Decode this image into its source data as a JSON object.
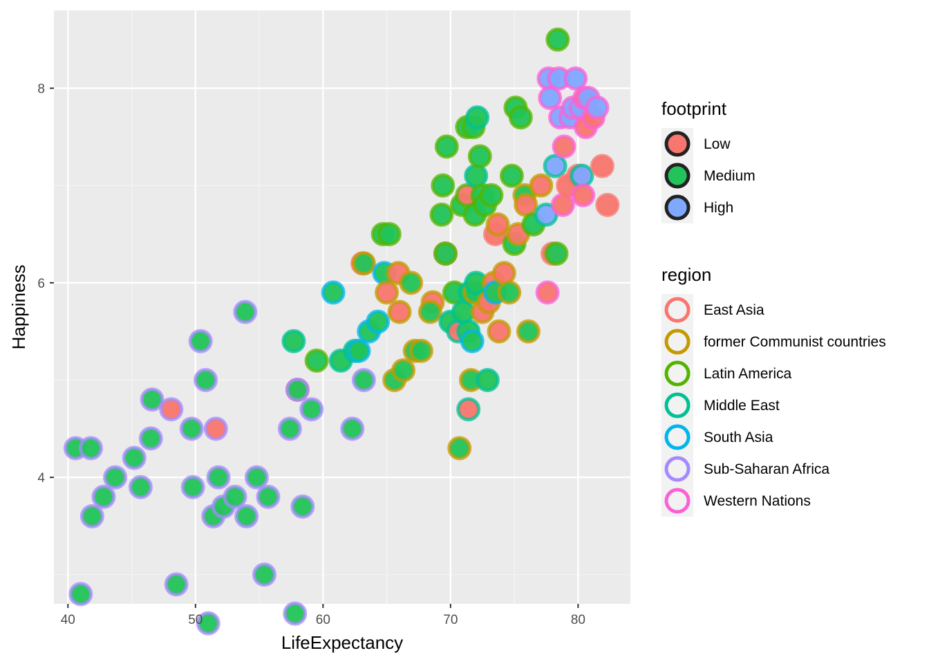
{
  "chart_data": {
    "type": "scatter",
    "xlabel": "LifeExpectancy",
    "ylabel": "Happiness",
    "xlim": [
      38.9,
      84.1
    ],
    "ylim": [
      2.7,
      8.8
    ],
    "x_ticks": [
      40,
      50,
      60,
      70,
      80
    ],
    "y_ticks": [
      4,
      6,
      8
    ],
    "grid": true,
    "legend_position": "right",
    "legends": [
      {
        "title": "footprint",
        "entries": [
          {
            "label": "Low",
            "fill": "#F8766D"
          },
          {
            "label": "Medium",
            "fill": "#22C45A"
          },
          {
            "label": "High",
            "fill": "#7FA8FF"
          }
        ]
      },
      {
        "title": "region",
        "entries": [
          {
            "label": "East Asia",
            "color": "#F8766D"
          },
          {
            "label": "former Communist countries",
            "color": "#C49A00"
          },
          {
            "label": "Latin America",
            "color": "#53B400"
          },
          {
            "label": "Middle East",
            "color": "#00C094"
          },
          {
            "label": "South Asia",
            "color": "#00B6EB"
          },
          {
            "label": "Sub-Saharan Africa",
            "color": "#A58AFF"
          },
          {
            "label": "Western Nations",
            "color": "#FB61D7"
          }
        ]
      }
    ],
    "points": [
      {
        "x": 40.6,
        "y": 4.3,
        "footprint": "Medium",
        "region": "Sub-Saharan Africa"
      },
      {
        "x": 41.8,
        "y": 4.3,
        "footprint": "Medium",
        "region": "Sub-Saharan Africa"
      },
      {
        "x": 41.9,
        "y": 3.6,
        "footprint": "Medium",
        "region": "Sub-Saharan Africa"
      },
      {
        "x": 41.0,
        "y": 2.8,
        "footprint": "Medium",
        "region": "Sub-Saharan Africa"
      },
      {
        "x": 42.8,
        "y": 3.8,
        "footprint": "Medium",
        "region": "Sub-Saharan Africa"
      },
      {
        "x": 43.7,
        "y": 4.0,
        "footprint": "Medium",
        "region": "Sub-Saharan Africa"
      },
      {
        "x": 45.2,
        "y": 4.2,
        "footprint": "Medium",
        "region": "Sub-Saharan Africa"
      },
      {
        "x": 45.7,
        "y": 3.9,
        "footprint": "Medium",
        "region": "Sub-Saharan Africa"
      },
      {
        "x": 46.5,
        "y": 4.4,
        "footprint": "Medium",
        "region": "Sub-Saharan Africa"
      },
      {
        "x": 46.6,
        "y": 4.8,
        "footprint": "Medium",
        "region": "Sub-Saharan Africa"
      },
      {
        "x": 48.1,
        "y": 4.7,
        "footprint": "Low",
        "region": "Sub-Saharan Africa"
      },
      {
        "x": 48.5,
        "y": 2.9,
        "footprint": "Medium",
        "region": "Sub-Saharan Africa"
      },
      {
        "x": 49.7,
        "y": 4.5,
        "footprint": "Medium",
        "region": "Sub-Saharan Africa"
      },
      {
        "x": 49.8,
        "y": 3.9,
        "footprint": "Medium",
        "region": "Sub-Saharan Africa"
      },
      {
        "x": 50.4,
        "y": 5.4,
        "footprint": "Medium",
        "region": "Sub-Saharan Africa"
      },
      {
        "x": 50.8,
        "y": 5.0,
        "footprint": "Medium",
        "region": "Sub-Saharan Africa"
      },
      {
        "x": 51.0,
        "y": 2.5,
        "footprint": "Medium",
        "region": "Sub-Saharan Africa"
      },
      {
        "x": 51.4,
        "y": 3.6,
        "footprint": "Medium",
        "region": "Sub-Saharan Africa"
      },
      {
        "x": 51.6,
        "y": 4.5,
        "footprint": "Low",
        "region": "Sub-Saharan Africa"
      },
      {
        "x": 51.8,
        "y": 4.0,
        "footprint": "Medium",
        "region": "Sub-Saharan Africa"
      },
      {
        "x": 52.2,
        "y": 3.7,
        "footprint": "Medium",
        "region": "Sub-Saharan Africa"
      },
      {
        "x": 53.1,
        "y": 3.8,
        "footprint": "Medium",
        "region": "Sub-Saharan Africa"
      },
      {
        "x": 53.9,
        "y": 5.7,
        "footprint": "Medium",
        "region": "Sub-Saharan Africa"
      },
      {
        "x": 54.0,
        "y": 3.6,
        "footprint": "Medium",
        "region": "Sub-Saharan Africa"
      },
      {
        "x": 54.8,
        "y": 4.0,
        "footprint": "Medium",
        "region": "Sub-Saharan Africa"
      },
      {
        "x": 55.4,
        "y": 3.0,
        "footprint": "Medium",
        "region": "Sub-Saharan Africa"
      },
      {
        "x": 55.7,
        "y": 3.8,
        "footprint": "Medium",
        "region": "Sub-Saharan Africa"
      },
      {
        "x": 57.4,
        "y": 4.5,
        "footprint": "Medium",
        "region": "Sub-Saharan Africa"
      },
      {
        "x": 57.8,
        "y": 2.6,
        "footprint": "Medium",
        "region": "Sub-Saharan Africa"
      },
      {
        "x": 58.0,
        "y": 4.9,
        "footprint": "Low",
        "region": "East Asia"
      },
      {
        "x": 58.0,
        "y": 4.9,
        "footprint": "Medium",
        "region": "Sub-Saharan Africa"
      },
      {
        "x": 58.4,
        "y": 3.7,
        "footprint": "Medium",
        "region": "Sub-Saharan Africa"
      },
      {
        "x": 57.7,
        "y": 5.4,
        "footprint": "Medium",
        "region": "Middle East"
      },
      {
        "x": 59.1,
        "y": 4.7,
        "footprint": "Medium",
        "region": "Sub-Saharan Africa"
      },
      {
        "x": 59.5,
        "y": 5.2,
        "footprint": "Medium",
        "region": "Latin America"
      },
      {
        "x": 60.8,
        "y": 5.9,
        "footprint": "Medium",
        "region": "South Asia"
      },
      {
        "x": 61.4,
        "y": 5.2,
        "footprint": "Medium",
        "region": "Middle East"
      },
      {
        "x": 62.3,
        "y": 4.5,
        "footprint": "Medium",
        "region": "Sub-Saharan Africa"
      },
      {
        "x": 62.5,
        "y": 5.3,
        "footprint": "Medium",
        "region": "Middle East"
      },
      {
        "x": 62.8,
        "y": 5.3,
        "footprint": "Medium",
        "region": "South Asia"
      },
      {
        "x": 63.1,
        "y": 6.2,
        "footprint": "Low",
        "region": "East Asia"
      },
      {
        "x": 63.2,
        "y": 6.2,
        "footprint": "Medium",
        "region": "former Communist countries"
      },
      {
        "x": 63.2,
        "y": 5.0,
        "footprint": "Medium",
        "region": "Sub-Saharan Africa"
      },
      {
        "x": 63.6,
        "y": 5.5,
        "footprint": "Medium",
        "region": "South Asia"
      },
      {
        "x": 64.3,
        "y": 5.6,
        "footprint": "Medium",
        "region": "South Asia"
      },
      {
        "x": 64.8,
        "y": 6.1,
        "footprint": "Medium",
        "region": "South Asia"
      },
      {
        "x": 64.7,
        "y": 6.5,
        "footprint": "Medium",
        "region": "Latin America"
      },
      {
        "x": 65.2,
        "y": 6.5,
        "footprint": "Medium",
        "region": "Latin America"
      },
      {
        "x": 65.0,
        "y": 5.9,
        "footprint": "Low",
        "region": "former Communist countries"
      },
      {
        "x": 65.6,
        "y": 5.0,
        "footprint": "Medium",
        "region": "former Communist countries"
      },
      {
        "x": 65.9,
        "y": 6.1,
        "footprint": "Low",
        "region": "former Communist countries"
      },
      {
        "x": 66.0,
        "y": 5.7,
        "footprint": "Low",
        "region": "former Communist countries"
      },
      {
        "x": 66.3,
        "y": 5.1,
        "footprint": "Medium",
        "region": "former Communist countries"
      },
      {
        "x": 66.9,
        "y": 6.0,
        "footprint": "Medium",
        "region": "former Communist countries"
      },
      {
        "x": 67.2,
        "y": 5.3,
        "footprint": "Medium",
        "region": "former Communist countries"
      },
      {
        "x": 67.7,
        "y": 5.3,
        "footprint": "Medium",
        "region": "former Communist countries"
      },
      {
        "x": 68.6,
        "y": 5.8,
        "footprint": "Low",
        "region": "former Communist countries"
      },
      {
        "x": 68.4,
        "y": 5.7,
        "footprint": "Medium",
        "region": "former Communist countries"
      },
      {
        "x": 69.3,
        "y": 6.7,
        "footprint": "Medium",
        "region": "Latin America"
      },
      {
        "x": 69.4,
        "y": 7.0,
        "footprint": "Medium",
        "region": "Latin America"
      },
      {
        "x": 69.6,
        "y": 6.3,
        "footprint": "Low",
        "region": "East Asia"
      },
      {
        "x": 69.6,
        "y": 6.3,
        "footprint": "Medium",
        "region": "Latin America"
      },
      {
        "x": 69.7,
        "y": 7.4,
        "footprint": "Medium",
        "region": "Latin America"
      },
      {
        "x": 70.0,
        "y": 5.6,
        "footprint": "Medium",
        "region": "Middle East"
      },
      {
        "x": 70.3,
        "y": 5.9,
        "footprint": "Medium",
        "region": "Latin America"
      },
      {
        "x": 70.6,
        "y": 5.5,
        "footprint": "Low",
        "region": "Middle East"
      },
      {
        "x": 70.7,
        "y": 4.3,
        "footprint": "Medium",
        "region": "former Communist countries"
      },
      {
        "x": 70.9,
        "y": 6.8,
        "footprint": "Medium",
        "region": "Latin America"
      },
      {
        "x": 71.0,
        "y": 5.7,
        "footprint": "Medium",
        "region": "Middle East"
      },
      {
        "x": 71.3,
        "y": 7.6,
        "footprint": "Medium",
        "region": "Latin America"
      },
      {
        "x": 71.3,
        "y": 6.9,
        "footprint": "Low",
        "region": "Latin America"
      },
      {
        "x": 71.4,
        "y": 5.5,
        "footprint": "Medium",
        "region": "Middle East"
      },
      {
        "x": 71.4,
        "y": 4.7,
        "footprint": "Low",
        "region": "Middle East"
      },
      {
        "x": 71.5,
        "y": 5.9,
        "footprint": "Medium",
        "region": "Middle East"
      },
      {
        "x": 71.6,
        "y": 5.0,
        "footprint": "Medium",
        "region": "former Communist countries"
      },
      {
        "x": 71.7,
        "y": 5.4,
        "footprint": "Medium",
        "region": "South Asia"
      },
      {
        "x": 71.8,
        "y": 7.6,
        "footprint": "Medium",
        "region": "Latin America"
      },
      {
        "x": 71.9,
        "y": 6.7,
        "footprint": "Medium",
        "region": "Latin America"
      },
      {
        "x": 71.9,
        "y": 5.9,
        "footprint": "Medium",
        "region": "former Communist countries"
      },
      {
        "x": 72.0,
        "y": 6.0,
        "footprint": "Medium",
        "region": "Middle East"
      },
      {
        "x": 72.0,
        "y": 7.1,
        "footprint": "Medium",
        "region": "Middle East"
      },
      {
        "x": 72.1,
        "y": 7.7,
        "footprint": "Medium",
        "region": "Middle East"
      },
      {
        "x": 72.3,
        "y": 7.3,
        "footprint": "Medium",
        "region": "Latin America"
      },
      {
        "x": 72.5,
        "y": 6.9,
        "footprint": "Medium",
        "region": "Latin America"
      },
      {
        "x": 72.5,
        "y": 5.7,
        "footprint": "Low",
        "region": "former Communist countries"
      },
      {
        "x": 72.7,
        "y": 6.8,
        "footprint": "Medium",
        "region": "Latin America"
      },
      {
        "x": 72.9,
        "y": 5.0,
        "footprint": "Medium",
        "region": "Middle East"
      },
      {
        "x": 73.0,
        "y": 5.8,
        "footprint": "Low",
        "region": "former Communist countries"
      },
      {
        "x": 73.2,
        "y": 6.9,
        "footprint": "Medium",
        "region": "Latin America"
      },
      {
        "x": 73.4,
        "y": 6.0,
        "footprint": "Low",
        "region": "former Communist countries"
      },
      {
        "x": 73.5,
        "y": 5.9,
        "footprint": "Medium",
        "region": "South Asia"
      },
      {
        "x": 73.5,
        "y": 6.5,
        "footprint": "Low",
        "region": "East Asia"
      },
      {
        "x": 73.7,
        "y": 6.6,
        "footprint": "Low",
        "region": "former Communist countries"
      },
      {
        "x": 73.8,
        "y": 5.5,
        "footprint": "Low",
        "region": "former Communist countries"
      },
      {
        "x": 74.2,
        "y": 6.1,
        "footprint": "Low",
        "region": "former Communist countries"
      },
      {
        "x": 74.6,
        "y": 5.9,
        "footprint": "Medium",
        "region": "former Communist countries"
      },
      {
        "x": 74.8,
        "y": 7.1,
        "footprint": "Medium",
        "region": "Latin America"
      },
      {
        "x": 75.0,
        "y": 6.4,
        "footprint": "Medium",
        "region": "Latin America"
      },
      {
        "x": 75.1,
        "y": 7.8,
        "footprint": "Medium",
        "region": "Latin America"
      },
      {
        "x": 75.3,
        "y": 6.5,
        "footprint": "Low",
        "region": "former Communist countries"
      },
      {
        "x": 75.5,
        "y": 7.7,
        "footprint": "Medium",
        "region": "Latin America"
      },
      {
        "x": 75.8,
        "y": 6.9,
        "footprint": "Medium",
        "region": "former Communist countries"
      },
      {
        "x": 75.9,
        "y": 6.8,
        "footprint": "Low",
        "region": "former Communist countries"
      },
      {
        "x": 76.1,
        "y": 5.5,
        "footprint": "Medium",
        "region": "former Communist countries"
      },
      {
        "x": 76.5,
        "y": 6.6,
        "footprint": "Medium",
        "region": "Latin America"
      },
      {
        "x": 77.1,
        "y": 7.0,
        "footprint": "Low",
        "region": "former Communist countries"
      },
      {
        "x": 77.5,
        "y": 6.7,
        "footprint": "High",
        "region": "Middle East"
      },
      {
        "x": 77.6,
        "y": 5.9,
        "footprint": "Low",
        "region": "Western Nations"
      },
      {
        "x": 77.7,
        "y": 8.1,
        "footprint": "High",
        "region": "Western Nations"
      },
      {
        "x": 77.8,
        "y": 7.9,
        "footprint": "High",
        "region": "Western Nations"
      },
      {
        "x": 78.0,
        "y": 6.3,
        "footprint": "Low",
        "region": "East Asia"
      },
      {
        "x": 78.2,
        "y": 7.2,
        "footprint": "High",
        "region": "Middle East"
      },
      {
        "x": 78.3,
        "y": 6.3,
        "footprint": "Medium",
        "region": "Latin America"
      },
      {
        "x": 78.4,
        "y": 8.5,
        "footprint": "Medium",
        "region": "Latin America"
      },
      {
        "x": 78.5,
        "y": 8.1,
        "footprint": "High",
        "region": "Western Nations"
      },
      {
        "x": 78.6,
        "y": 7.7,
        "footprint": "High",
        "region": "Western Nations"
      },
      {
        "x": 78.8,
        "y": 6.8,
        "footprint": "Low",
        "region": "Western Nations"
      },
      {
        "x": 78.9,
        "y": 7.4,
        "footprint": "Low",
        "region": "Western Nations"
      },
      {
        "x": 79.2,
        "y": 7.0,
        "footprint": "Low",
        "region": "East Asia"
      },
      {
        "x": 79.4,
        "y": 7.7,
        "footprint": "High",
        "region": "Western Nations"
      },
      {
        "x": 79.6,
        "y": 7.8,
        "footprint": "High",
        "region": "Western Nations"
      },
      {
        "x": 79.8,
        "y": 8.1,
        "footprint": "High",
        "region": "Western Nations"
      },
      {
        "x": 80.0,
        "y": 7.1,
        "footprint": "Low",
        "region": "East Asia"
      },
      {
        "x": 80.2,
        "y": 7.8,
        "footprint": "High",
        "region": "Western Nations"
      },
      {
        "x": 80.3,
        "y": 7.1,
        "footprint": "High",
        "region": "Middle East"
      },
      {
        "x": 80.4,
        "y": 6.9,
        "footprint": "Low",
        "region": "Western Nations"
      },
      {
        "x": 80.5,
        "y": 7.9,
        "footprint": "Low",
        "region": "Western Nations"
      },
      {
        "x": 80.6,
        "y": 7.6,
        "footprint": "Low",
        "region": "Western Nations"
      },
      {
        "x": 80.8,
        "y": 7.9,
        "footprint": "High",
        "region": "Western Nations"
      },
      {
        "x": 81.2,
        "y": 7.7,
        "footprint": "Low",
        "region": "Western Nations"
      },
      {
        "x": 81.5,
        "y": 7.8,
        "footprint": "High",
        "region": "Western Nations"
      },
      {
        "x": 81.9,
        "y": 7.2,
        "footprint": "Low",
        "region": "East Asia"
      },
      {
        "x": 82.3,
        "y": 6.8,
        "footprint": "Low",
        "region": "East Asia"
      }
    ]
  }
}
